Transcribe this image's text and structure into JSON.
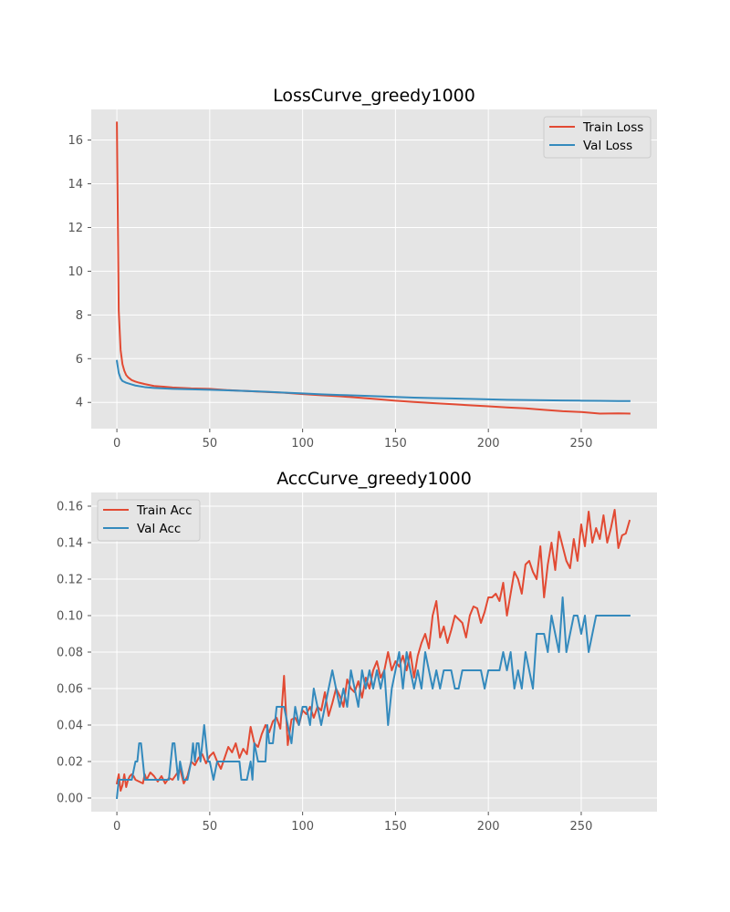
{
  "chart_data": [
    {
      "type": "line",
      "title": "LossCurve_greedy1000",
      "xlabel": "",
      "ylabel": "",
      "xlim": [
        -13.8,
        290.8
      ],
      "ylim": [
        2.8,
        17.4
      ],
      "xticks": [
        0,
        50,
        100,
        150,
        200,
        250
      ],
      "yticks": [
        4,
        6,
        8,
        10,
        12,
        14,
        16
      ],
      "ytick_labels": [
        "4",
        "6",
        "8",
        "10",
        "12",
        "14",
        "16"
      ],
      "legend": "top-right",
      "grid": true,
      "series": [
        {
          "name": "Train Loss",
          "color": "#E24A33",
          "x": [
            0,
            1,
            2,
            3,
            4,
            5,
            6,
            8,
            10,
            12,
            15,
            20,
            25,
            30,
            40,
            50,
            60,
            70,
            80,
            90,
            100,
            110,
            120,
            130,
            140,
            150,
            160,
            170,
            180,
            190,
            200,
            210,
            220,
            230,
            240,
            250,
            260,
            270,
            276
          ],
          "y": [
            16.8,
            8.2,
            6.4,
            5.75,
            5.45,
            5.25,
            5.15,
            5.02,
            4.95,
            4.9,
            4.84,
            4.75,
            4.72,
            4.68,
            4.64,
            4.62,
            4.56,
            4.52,
            4.48,
            4.44,
            4.38,
            4.33,
            4.28,
            4.22,
            4.15,
            4.08,
            4.02,
            3.97,
            3.92,
            3.87,
            3.82,
            3.77,
            3.73,
            3.66,
            3.6,
            3.56,
            3.49,
            3.5,
            3.49
          ]
        },
        {
          "name": "Val Loss",
          "color": "#348ABD",
          "x": [
            0,
            1,
            2,
            3,
            5,
            8,
            10,
            15,
            20,
            25,
            30,
            40,
            50,
            60,
            70,
            80,
            90,
            100,
            110,
            120,
            130,
            140,
            150,
            160,
            170,
            180,
            190,
            200,
            210,
            220,
            230,
            240,
            250,
            260,
            270,
            276
          ],
          "y": [
            5.9,
            5.35,
            5.1,
            4.98,
            4.9,
            4.82,
            4.77,
            4.7,
            4.66,
            4.64,
            4.62,
            4.6,
            4.58,
            4.55,
            4.52,
            4.49,
            4.45,
            4.41,
            4.37,
            4.34,
            4.31,
            4.28,
            4.25,
            4.22,
            4.2,
            4.18,
            4.16,
            4.14,
            4.12,
            4.11,
            4.1,
            4.09,
            4.08,
            4.07,
            4.06,
            4.06
          ]
        }
      ]
    },
    {
      "type": "line",
      "title": "AccCurve_greedy1000",
      "xlabel": "",
      "ylabel": "",
      "xlim": [
        -13.8,
        290.8
      ],
      "ylim": [
        -0.0075,
        0.1675
      ],
      "xticks": [
        0,
        50,
        100,
        150,
        200,
        250
      ],
      "yticks": [
        0.0,
        0.02,
        0.04,
        0.06,
        0.08,
        0.1,
        0.12,
        0.14,
        0.16
      ],
      "ytick_labels": [
        "0.00",
        "0.02",
        "0.04",
        "0.06",
        "0.08",
        "0.10",
        "0.12",
        "0.14",
        "0.16"
      ],
      "legend": "top-left",
      "grid": true,
      "series": [
        {
          "name": "Train Acc",
          "color": "#E24A33",
          "x": [
            0,
            1,
            2,
            3,
            4,
            5,
            6,
            7,
            8,
            9,
            10,
            12,
            14,
            15,
            16,
            18,
            20,
            22,
            24,
            26,
            28,
            30,
            32,
            34,
            36,
            38,
            40,
            42,
            44,
            46,
            48,
            50,
            52,
            54,
            56,
            58,
            60,
            62,
            64,
            66,
            68,
            70,
            72,
            74,
            76,
            78,
            80,
            82,
            84,
            86,
            88,
            90,
            92,
            94,
            96,
            98,
            100,
            102,
            104,
            106,
            108,
            110,
            112,
            114,
            116,
            118,
            120,
            122,
            124,
            126,
            128,
            130,
            132,
            134,
            136,
            138,
            140,
            142,
            144,
            146,
            148,
            150,
            152,
            154,
            156,
            158,
            160,
            162,
            164,
            166,
            168,
            170,
            172,
            174,
            176,
            178,
            180,
            182,
            184,
            186,
            188,
            190,
            192,
            194,
            196,
            198,
            200,
            202,
            204,
            206,
            208,
            210,
            212,
            214,
            216,
            218,
            220,
            222,
            224,
            226,
            228,
            230,
            232,
            234,
            236,
            238,
            240,
            242,
            244,
            246,
            248,
            250,
            252,
            254,
            256,
            258,
            260,
            262,
            264,
            266,
            268,
            270,
            272,
            274,
            276
          ],
          "y": [
            0.008,
            0.013,
            0.004,
            0.007,
            0.013,
            0.006,
            0.01,
            0.012,
            0.013,
            0.012,
            0.01,
            0.009,
            0.008,
            0.013,
            0.01,
            0.014,
            0.012,
            0.009,
            0.012,
            0.008,
            0.011,
            0.01,
            0.013,
            0.016,
            0.008,
            0.012,
            0.02,
            0.018,
            0.022,
            0.024,
            0.019,
            0.023,
            0.025,
            0.02,
            0.016,
            0.022,
            0.028,
            0.025,
            0.03,
            0.022,
            0.027,
            0.024,
            0.039,
            0.03,
            0.028,
            0.035,
            0.04,
            0.036,
            0.042,
            0.044,
            0.038,
            0.067,
            0.029,
            0.043,
            0.044,
            0.04,
            0.048,
            0.046,
            0.05,
            0.044,
            0.05,
            0.048,
            0.058,
            0.045,
            0.052,
            0.06,
            0.056,
            0.05,
            0.065,
            0.06,
            0.058,
            0.064,
            0.055,
            0.066,
            0.06,
            0.07,
            0.075,
            0.066,
            0.07,
            0.08,
            0.07,
            0.075,
            0.072,
            0.078,
            0.07,
            0.08,
            0.066,
            0.078,
            0.085,
            0.09,
            0.082,
            0.1,
            0.108,
            0.088,
            0.094,
            0.085,
            0.092,
            0.1,
            0.098,
            0.096,
            0.088,
            0.1,
            0.105,
            0.104,
            0.096,
            0.102,
            0.11,
            0.11,
            0.112,
            0.108,
            0.118,
            0.1,
            0.112,
            0.124,
            0.12,
            0.112,
            0.128,
            0.13,
            0.124,
            0.12,
            0.138,
            0.11,
            0.128,
            0.14,
            0.125,
            0.146,
            0.138,
            0.13,
            0.126,
            0.142,
            0.13,
            0.15,
            0.138,
            0.157,
            0.14,
            0.148,
            0.142,
            0.155,
            0.14,
            0.148,
            0.158,
            0.137,
            0.144,
            0.145,
            0.152
          ]
        },
        {
          "name": "Val Acc",
          "color": "#348ABD",
          "x": [
            0,
            1,
            2,
            4,
            6,
            8,
            10,
            11,
            12,
            13,
            14,
            15,
            16,
            18,
            20,
            22,
            24,
            26,
            28,
            29,
            30,
            31,
            32,
            33,
            34,
            36,
            38,
            40,
            41,
            42,
            43,
            44,
            45,
            46,
            47,
            48,
            49,
            50,
            52,
            54,
            56,
            58,
            60,
            62,
            64,
            66,
            67,
            68,
            70,
            72,
            73,
            74,
            76,
            78,
            80,
            81,
            82,
            84,
            86,
            88,
            89,
            90,
            92,
            94,
            96,
            98,
            100,
            102,
            104,
            106,
            108,
            110,
            112,
            114,
            116,
            118,
            120,
            122,
            124,
            126,
            128,
            130,
            132,
            134,
            136,
            138,
            140,
            142,
            144,
            146,
            148,
            150,
            152,
            154,
            156,
            158,
            160,
            162,
            164,
            166,
            168,
            170,
            172,
            174,
            176,
            178,
            180,
            182,
            184,
            186,
            188,
            190,
            192,
            194,
            196,
            198,
            200,
            202,
            204,
            206,
            208,
            210,
            212,
            214,
            216,
            218,
            220,
            222,
            224,
            226,
            228,
            230,
            232,
            234,
            236,
            238,
            240,
            242,
            244,
            246,
            248,
            250,
            252,
            254,
            256,
            258,
            260,
            262,
            264,
            266,
            268,
            270,
            272,
            274,
            276
          ],
          "y": [
            0.0,
            0.01,
            0.01,
            0.01,
            0.01,
            0.01,
            0.02,
            0.02,
            0.03,
            0.03,
            0.02,
            0.01,
            0.01,
            0.01,
            0.01,
            0.01,
            0.01,
            0.01,
            0.01,
            0.02,
            0.03,
            0.03,
            0.02,
            0.01,
            0.02,
            0.01,
            0.01,
            0.02,
            0.03,
            0.02,
            0.03,
            0.03,
            0.02,
            0.03,
            0.04,
            0.03,
            0.02,
            0.02,
            0.01,
            0.02,
            0.02,
            0.02,
            0.02,
            0.02,
            0.02,
            0.02,
            0.01,
            0.01,
            0.01,
            0.02,
            0.01,
            0.03,
            0.02,
            0.02,
            0.02,
            0.04,
            0.03,
            0.03,
            0.05,
            0.05,
            0.05,
            0.05,
            0.04,
            0.03,
            0.05,
            0.04,
            0.05,
            0.05,
            0.04,
            0.06,
            0.05,
            0.04,
            0.05,
            0.06,
            0.07,
            0.06,
            0.05,
            0.06,
            0.05,
            0.07,
            0.06,
            0.05,
            0.07,
            0.06,
            0.07,
            0.06,
            0.07,
            0.06,
            0.07,
            0.04,
            0.06,
            0.07,
            0.08,
            0.06,
            0.08,
            0.07,
            0.06,
            0.07,
            0.06,
            0.08,
            0.07,
            0.06,
            0.07,
            0.06,
            0.07,
            0.07,
            0.07,
            0.06,
            0.06,
            0.07,
            0.07,
            0.07,
            0.07,
            0.07,
            0.07,
            0.06,
            0.07,
            0.07,
            0.07,
            0.07,
            0.08,
            0.07,
            0.08,
            0.06,
            0.07,
            0.06,
            0.08,
            0.07,
            0.06,
            0.09,
            0.09,
            0.09,
            0.08,
            0.1,
            0.09,
            0.08,
            0.11,
            0.08,
            0.09,
            0.1,
            0.1,
            0.09,
            0.1,
            0.08,
            0.09,
            0.1,
            0.1,
            0.1,
            0.1,
            0.1,
            0.1,
            0.1,
            0.1,
            0.1,
            0.1
          ]
        }
      ]
    }
  ]
}
